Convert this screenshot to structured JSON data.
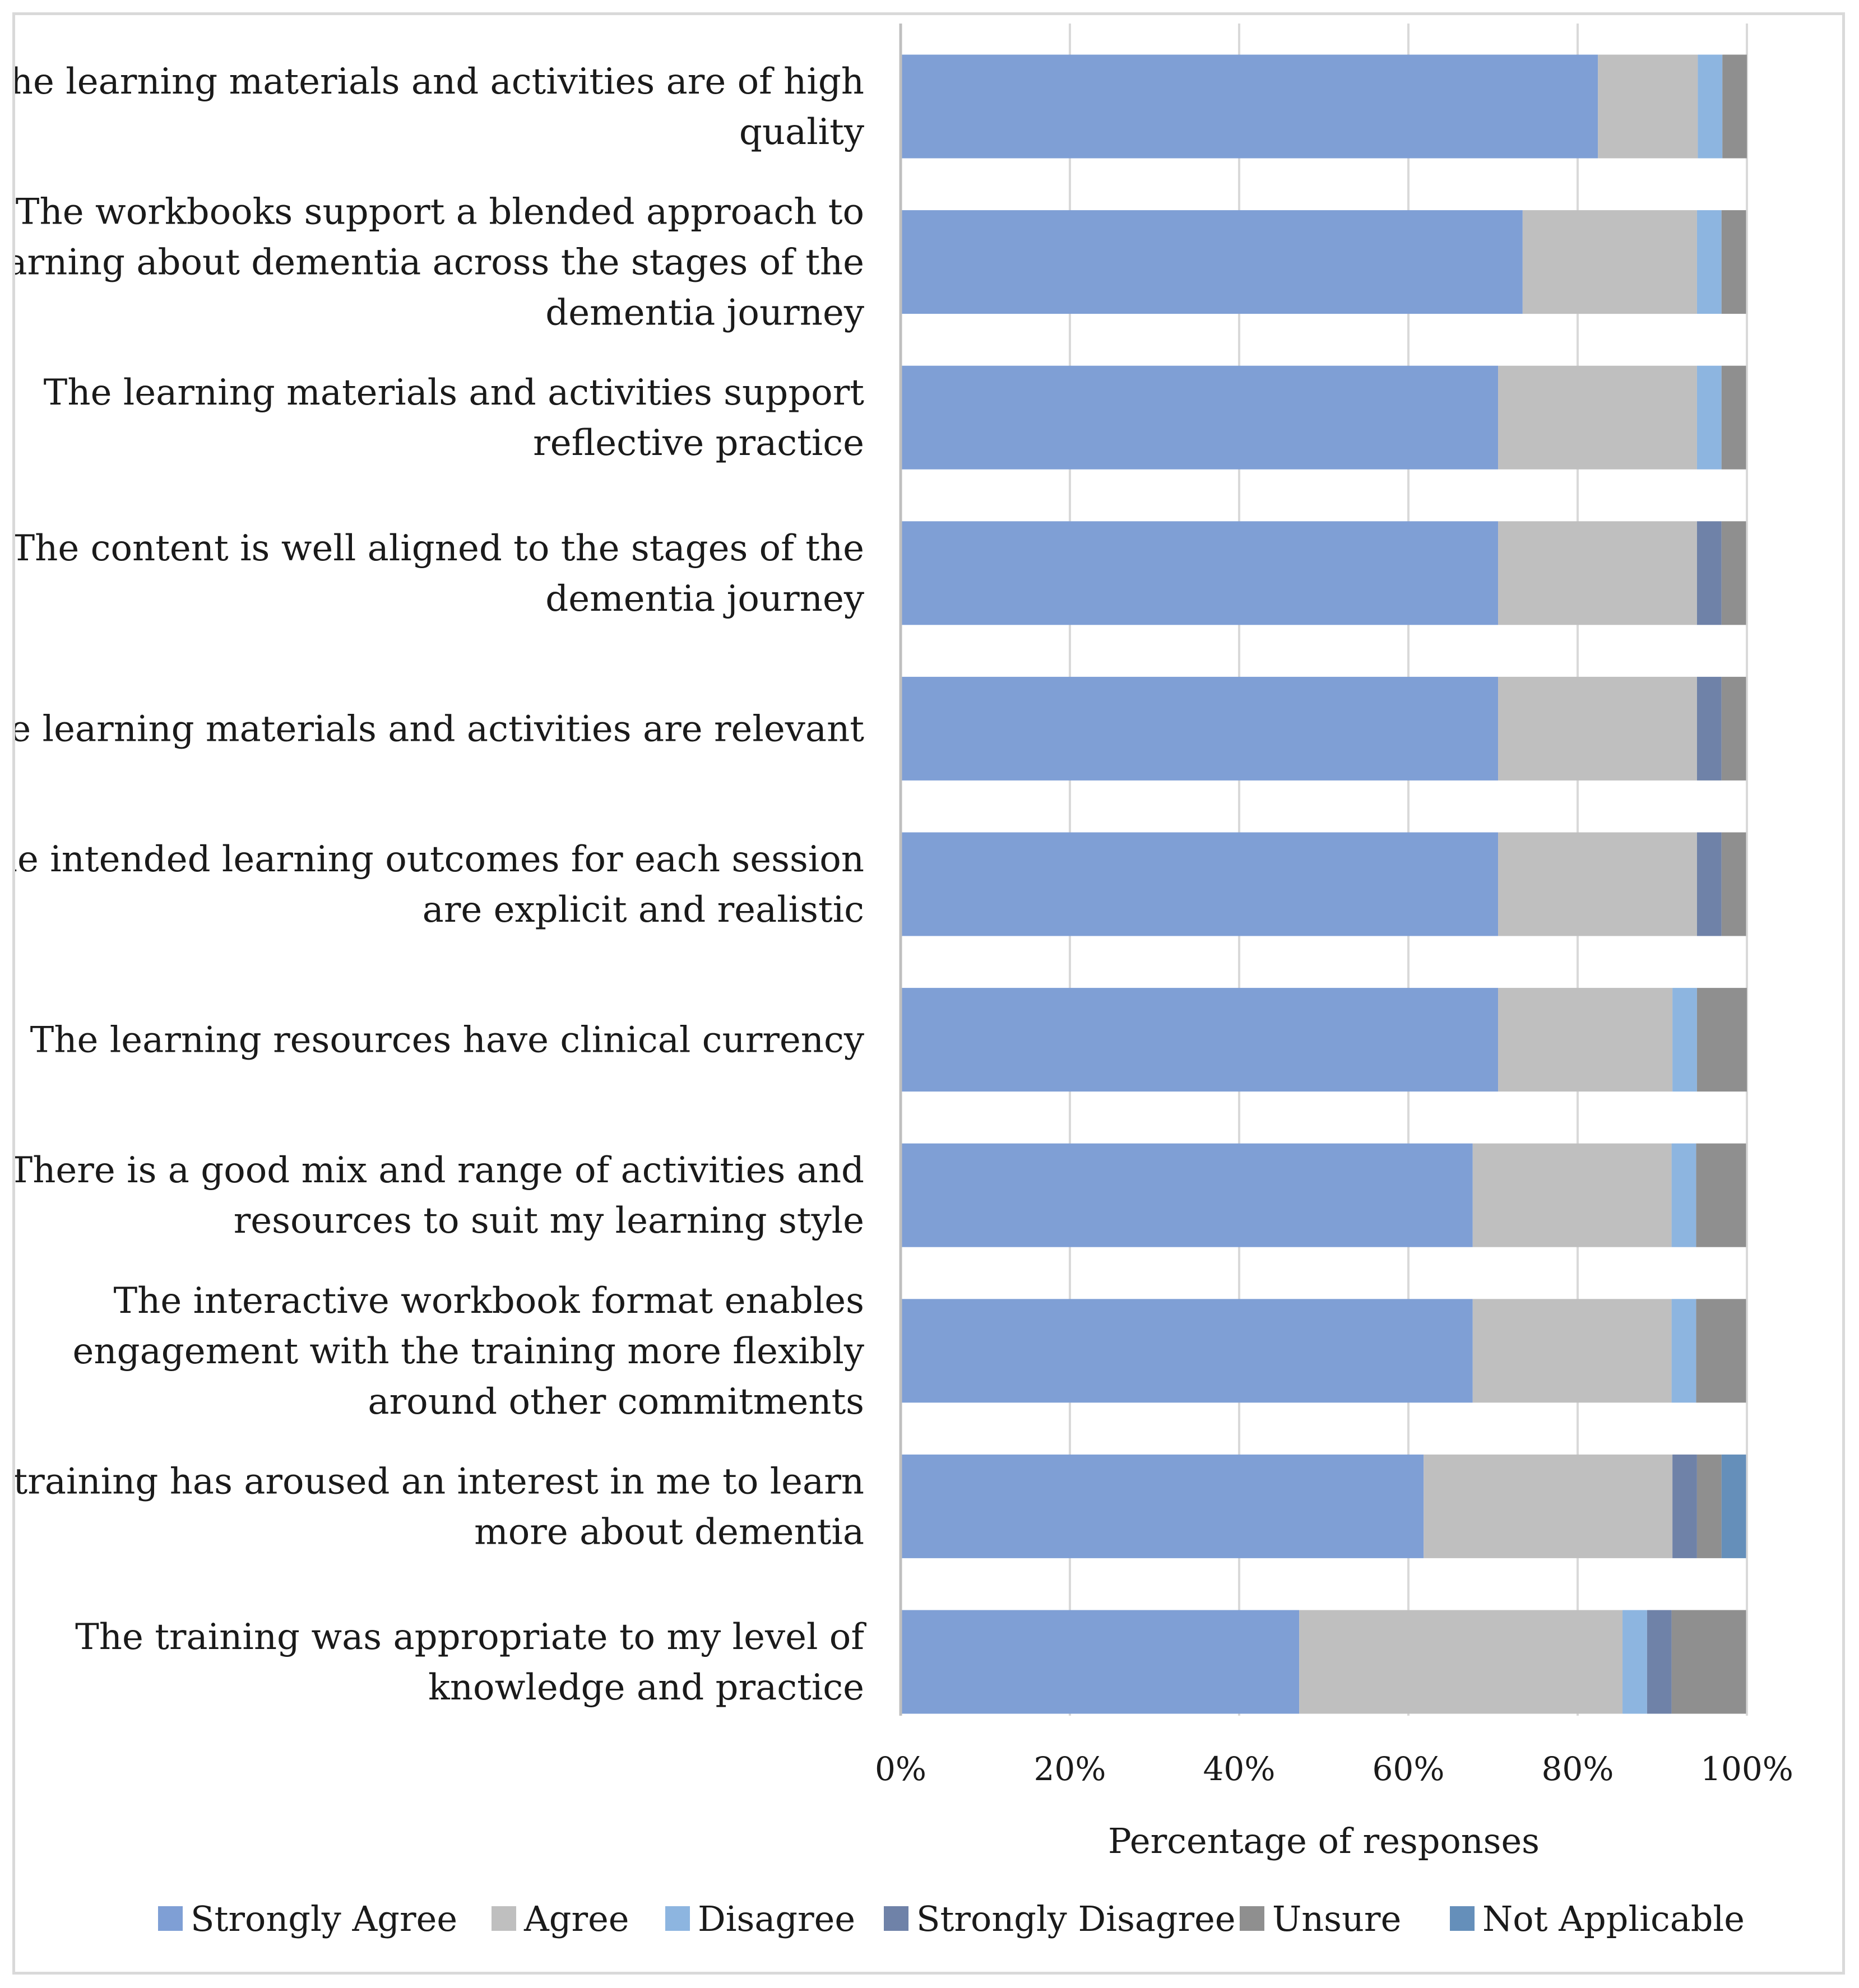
{
  "chart_data": {
    "type": "bar",
    "orientation": "horizontal",
    "stacked": true,
    "title": "",
    "xlabel": "Percentage of responses",
    "ylabel": "",
    "xlim": [
      0,
      100
    ],
    "xticks": [
      "0%",
      "20%",
      "40%",
      "60%",
      "80%",
      "100%"
    ],
    "grid": true,
    "legend_position": "bottom",
    "categories": [
      [
        "The learning materials and activities are of high",
        "quality"
      ],
      [
        "The workbooks support a blended approach to",
        "learning about dementia across the stages of the",
        "dementia journey"
      ],
      [
        "The learning materials and activities support",
        "reflective practice"
      ],
      [
        "The content is well aligned to the stages of the",
        "dementia journey"
      ],
      [
        "The learning materials and activities are relevant"
      ],
      [
        "The intended learning outcomes for each session",
        "are explicit and realistic"
      ],
      [
        "The learning resources have clinical currency"
      ],
      [
        "There is a good mix and range of activities and",
        "resources to suit my learning style"
      ],
      [
        "The interactive workbook format enables",
        "engagement with the training more flexibly",
        "around other commitments"
      ],
      [
        "The training has aroused an interest in me to learn",
        "more about dementia"
      ],
      [
        "The training was appropriate to my level of",
        "knowledge and practice"
      ]
    ],
    "series": [
      {
        "name": "Strongly Agree",
        "color": "#7f9fd5",
        "values": [
          82.4,
          73.5,
          70.6,
          70.6,
          70.6,
          70.6,
          70.6,
          67.6,
          67.6,
          61.8,
          47.1
        ]
      },
      {
        "name": "Agree",
        "color": "#bfbfbf",
        "values": [
          11.8,
          20.6,
          23.5,
          23.5,
          23.5,
          23.5,
          20.6,
          23.5,
          23.5,
          29.4,
          38.2
        ]
      },
      {
        "name": "Disagree",
        "color": "#8db5e0",
        "values": [
          2.9,
          2.9,
          2.9,
          0,
          0,
          0,
          2.9,
          2.9,
          2.9,
          0,
          2.9
        ]
      },
      {
        "name": "Strongly Disagree",
        "color": "#6f82a8",
        "values": [
          0,
          0,
          0,
          2.9,
          2.9,
          2.9,
          0,
          0,
          0,
          2.9,
          2.9
        ]
      },
      {
        "name": "Unsure",
        "color": "#8f8f8f",
        "values": [
          2.9,
          2.9,
          2.9,
          2.9,
          2.9,
          2.9,
          5.9,
          5.9,
          5.9,
          2.9,
          8.8
        ]
      },
      {
        "name": "Not Applicable",
        "color": "#658fba",
        "values": [
          0,
          0,
          0,
          0,
          0,
          0,
          0,
          0,
          0,
          2.9,
          0
        ]
      }
    ]
  }
}
